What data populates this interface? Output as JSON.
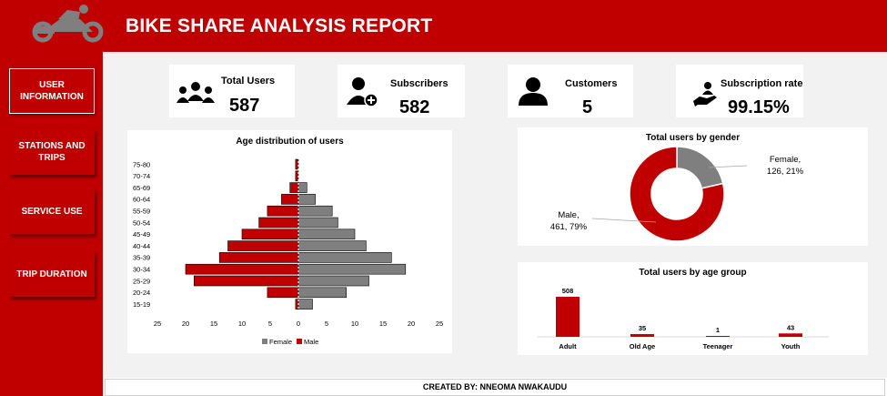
{
  "header": {
    "title": "BIKE SHARE ANALYSIS REPORT",
    "logo_icon": "bicycle-rider-icon"
  },
  "sidebar": {
    "items": [
      {
        "label": "USER INFORMATION",
        "active": true
      },
      {
        "label": "STATIONS AND TRIPS",
        "active": false
      },
      {
        "label": "SERVICE USE",
        "active": false
      },
      {
        "label": "TRIP DURATION",
        "active": false
      }
    ]
  },
  "kpis": [
    {
      "label": "Total Users",
      "value": "587",
      "icon": "users-group-icon"
    },
    {
      "label": "Subscribers",
      "value": "582",
      "icon": "add-user-icon"
    },
    {
      "label": "Customers",
      "value": "5",
      "icon": "user-icon"
    },
    {
      "label": "Subscription rate",
      "value": "99.15%",
      "icon": "hand-user-icon"
    }
  ],
  "colors": {
    "accent": "#c00000",
    "female": "#7f7f7f",
    "male": "#c00000",
    "background": "#f2f2f2"
  },
  "footer": {
    "text": "CREATED BY: NNEOMA NWAKAUDU"
  },
  "chart_data": [
    {
      "type": "bar",
      "orientation": "horizontal-population-pyramid",
      "title": "Age distribution of users",
      "categories": [
        "15-19",
        "20-24",
        "25-29",
        "30-34",
        "35-39",
        "40-44",
        "45-49",
        "50-54",
        "55-59",
        "60-64",
        "65-69",
        "70-74",
        "75-80"
      ],
      "series": [
        {
          "name": "Female",
          "values": [
            2.5,
            8.5,
            12.5,
            19,
            16.5,
            12,
            10,
            7,
            6,
            3,
            1.5,
            0,
            0
          ]
        },
        {
          "name": "Male",
          "values": [
            0.5,
            5.5,
            18.5,
            20,
            14,
            12.5,
            10,
            7,
            5.5,
            3,
            1.5,
            0.5,
            0.5
          ]
        }
      ],
      "xticks": [
        "25",
        "20",
        "15",
        "10",
        "5",
        "0",
        "5",
        "10",
        "15",
        "20",
        "25"
      ],
      "xlim": [
        -25,
        25
      ],
      "legend": "bottom",
      "grid": false
    },
    {
      "type": "pie",
      "variant": "donut",
      "title": "Total users by gender",
      "categories": [
        "Female",
        "Male"
      ],
      "values": [
        126,
        461
      ],
      "labels": [
        {
          "line1": "Female,",
          "line2": "126, 21%"
        },
        {
          "line1": "Male,",
          "line2": "461, 79%"
        }
      ]
    },
    {
      "type": "bar",
      "title": "Total users by age group",
      "categories": [
        "Adult",
        "Old Age",
        "Teenager",
        "Youth"
      ],
      "values": [
        508,
        35,
        1,
        43
      ],
      "data_labels": [
        "508",
        "35",
        "1",
        "43"
      ],
      "grid": false
    }
  ]
}
